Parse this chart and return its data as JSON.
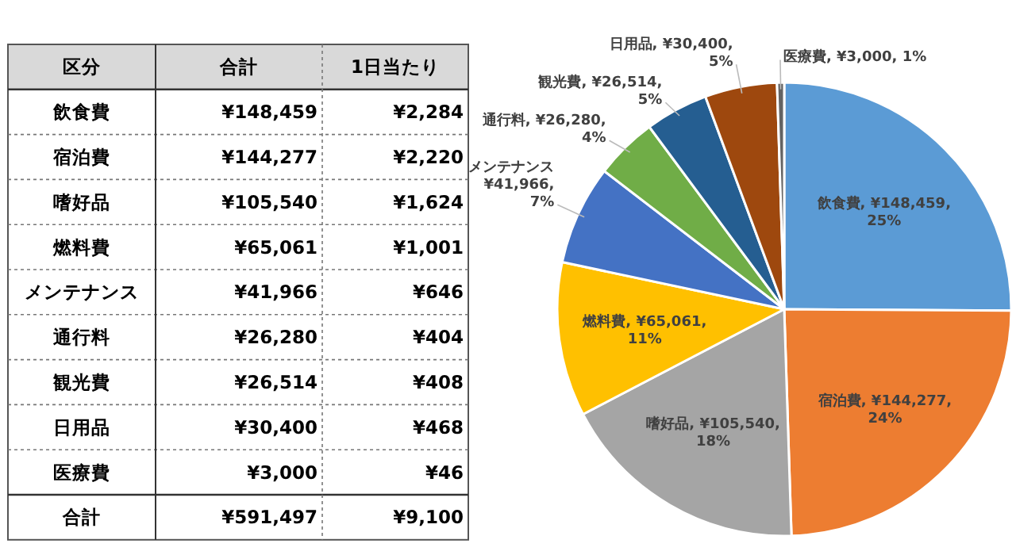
{
  "chart_data": [
    {
      "type": "other",
      "xlabel": "区分",
      "categories": [
        "飲食費",
        "宿泊費",
        "嗜好品",
        "燃料費",
        "メンテナンス",
        "通行料",
        "観光費",
        "日用品",
        "医療費",
        "合計"
      ],
      "series": [
        {
          "name": "合計",
          "values": [
            148459,
            144277,
            105540,
            65061,
            41966,
            26280,
            26514,
            30400,
            3000,
            591497
          ],
          "value_labels": [
            "¥148,459",
            "¥144,277",
            "¥105,540",
            "¥65,061",
            "¥41,966",
            "¥26,280",
            "¥26,514",
            "¥30,400",
            "¥3,000",
            "¥591,497"
          ]
        },
        {
          "name": "1日当たり",
          "values": [
            2284,
            2220,
            1624,
            1001,
            646,
            404,
            408,
            468,
            46,
            9100
          ],
          "value_labels": [
            "¥2,284",
            "¥2,220",
            "¥1,624",
            "¥1,001",
            "¥646",
            "¥404",
            "¥408",
            "¥468",
            "¥46",
            "¥9,100"
          ]
        }
      ]
    },
    {
      "type": "pie",
      "categories": [
        "飲食費",
        "宿泊費",
        "嗜好品",
        "燃料費",
        "メンテナンス",
        "通行料",
        "観光費",
        "日用品",
        "医療費"
      ],
      "values": [
        148459,
        144277,
        105540,
        65061,
        41966,
        26280,
        26514,
        30400,
        3000
      ],
      "colors": [
        "#5b9bd5",
        "#ed7d31",
        "#a5a5a5",
        "#ffc000",
        "#4472c4",
        "#70ad47",
        "#255e91",
        "#9e480e",
        "#636363"
      ],
      "value_labels": [
        "¥148,459, 25%",
        "¥144,277, 24%",
        "¥105,540, 18%",
        "¥65,061, 11%",
        "¥41,966, 7%",
        "¥26,280, 4%",
        "¥26,514, 5%",
        "¥30,400, 5%",
        "¥3,000, 1%"
      ]
    }
  ]
}
